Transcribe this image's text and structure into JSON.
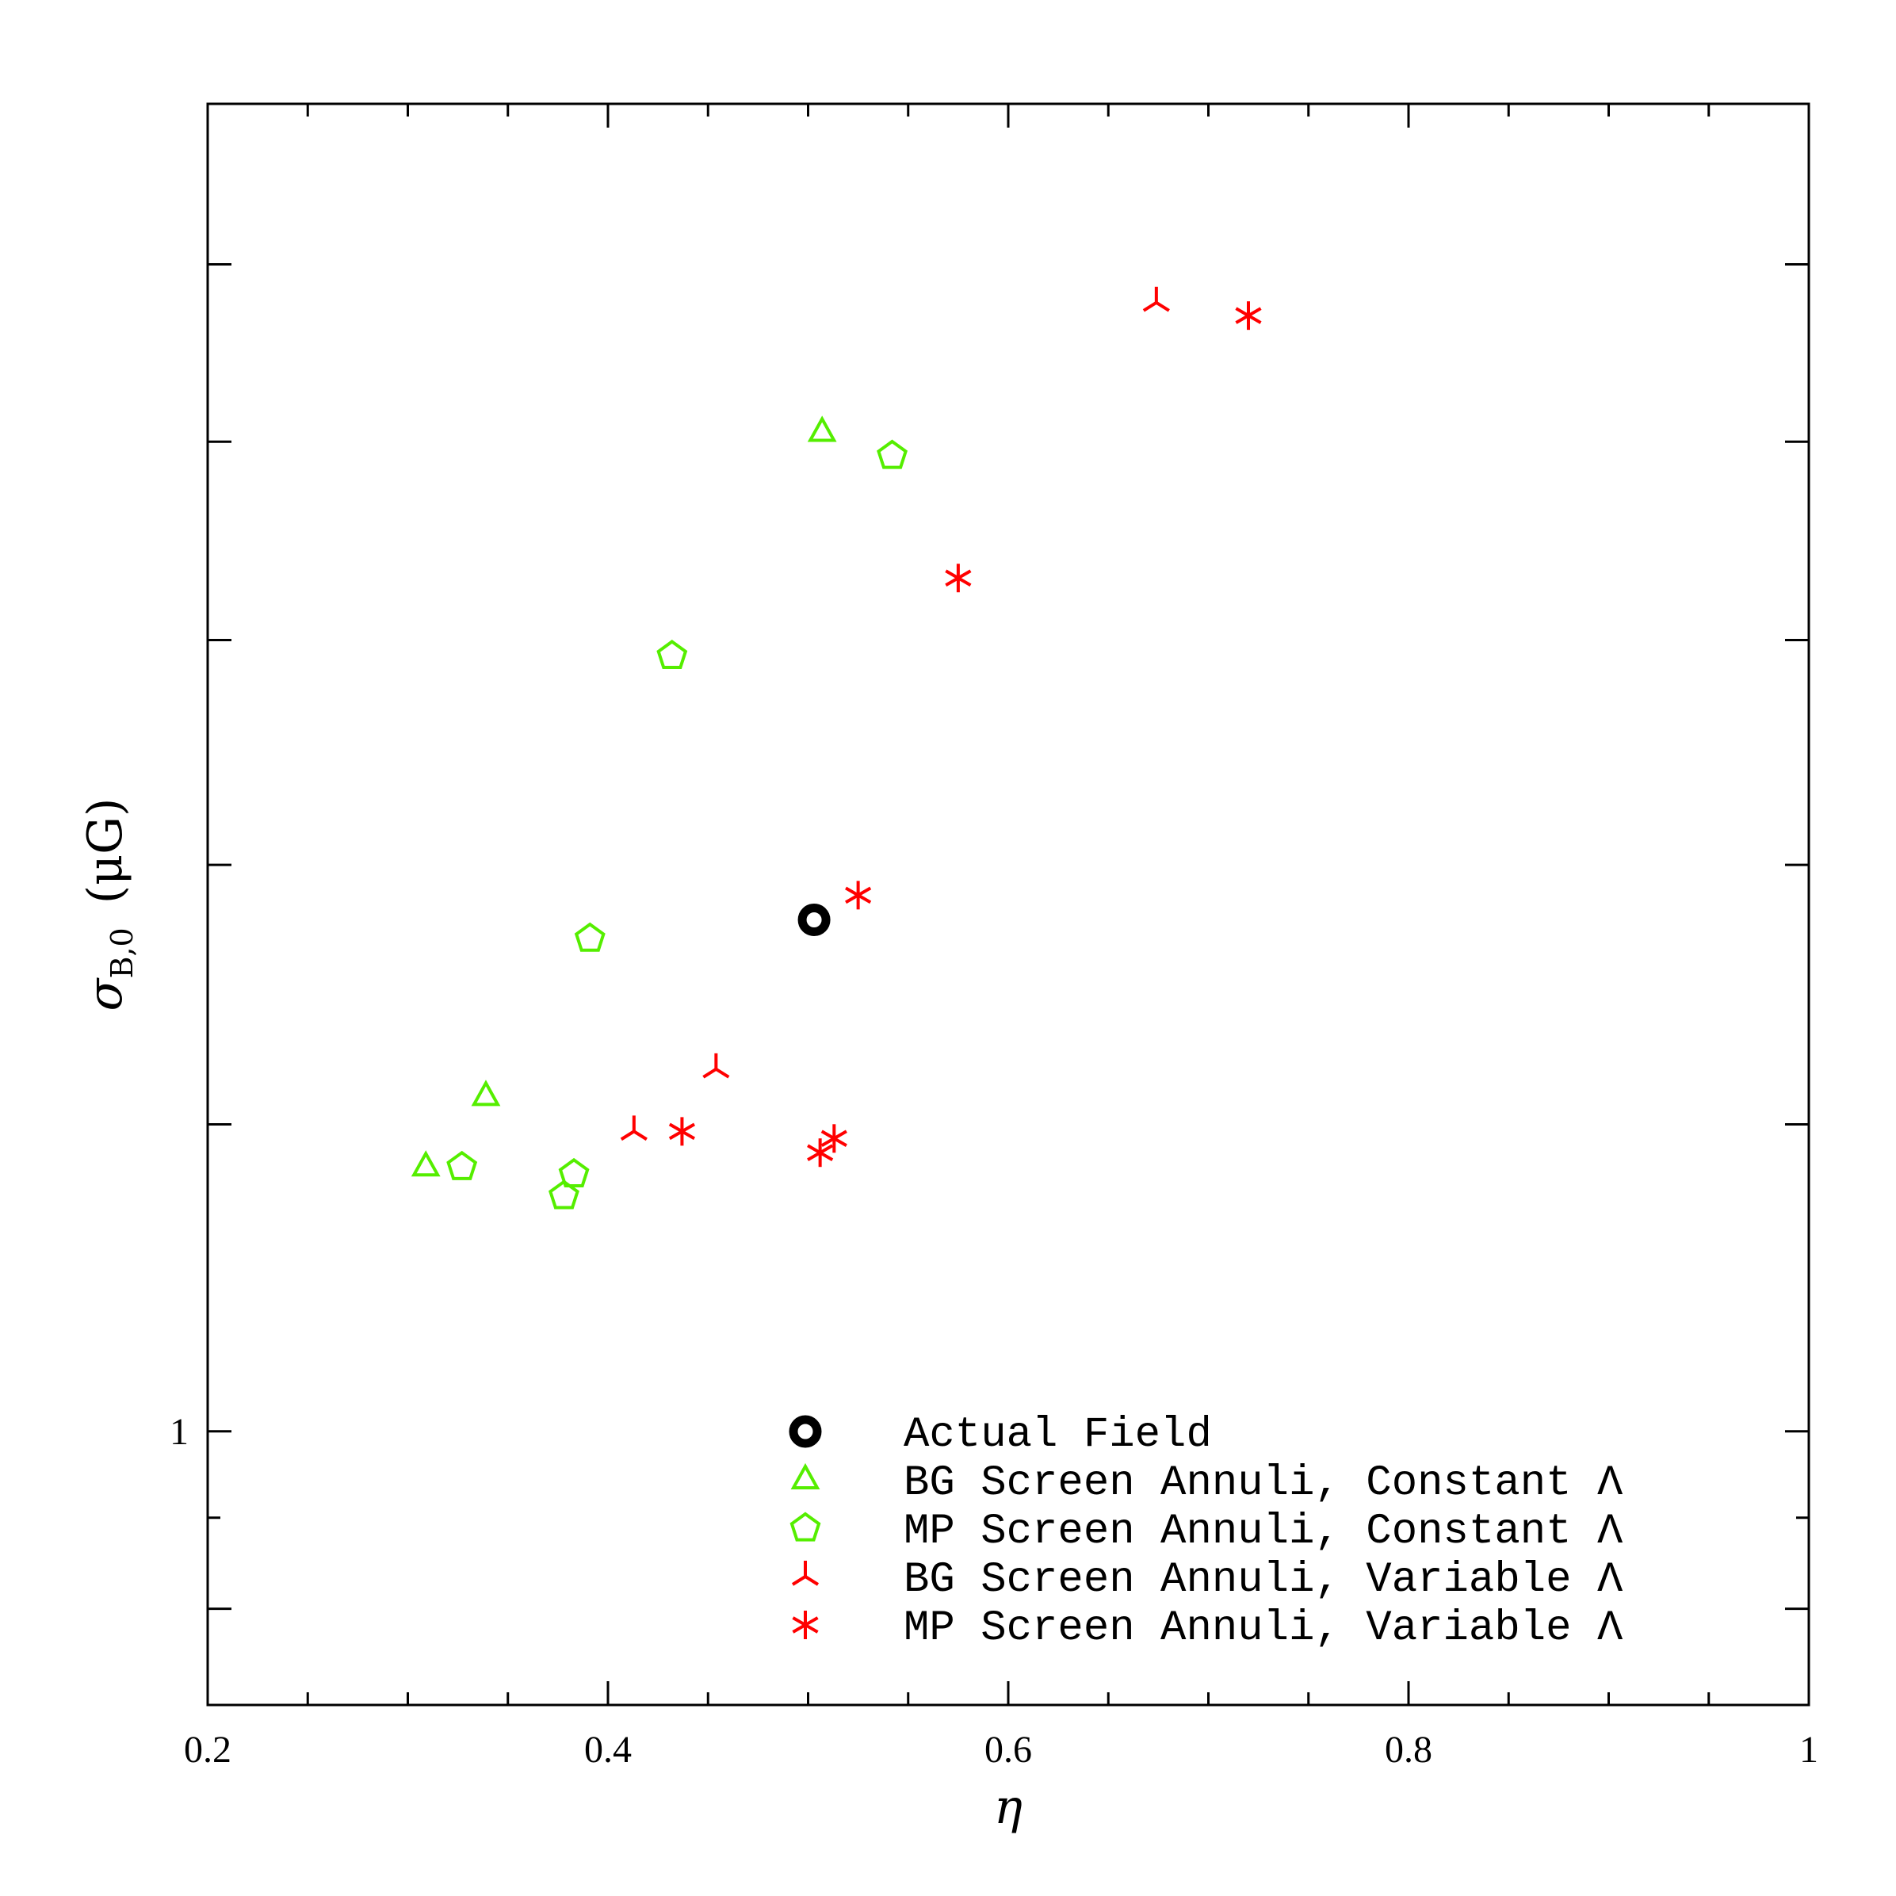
{
  "chart_data": {
    "type": "scatter",
    "xlabel": "η",
    "ylabel_symbol": "σ",
    "ylabel_subscript": "B,0",
    "ylabel_unit": "(μG)",
    "xlim": [
      0.2,
      1.0
    ],
    "ylim": [
      0.85,
      2.2
    ],
    "y_scale": "log",
    "x_ticks": [
      {
        "value": 0.2,
        "label": "0.2"
      },
      {
        "value": 0.4,
        "label": "0.4"
      },
      {
        "value": 0.6,
        "label": "0.6"
      },
      {
        "value": 0.8,
        "label": "0.8"
      },
      {
        "value": 1.0,
        "label": "1"
      }
    ],
    "y_ticks": [
      {
        "value": 1.0,
        "label": "1"
      }
    ],
    "legend_position": "bottom-right",
    "series": [
      {
        "name": "Actual Field",
        "marker": "circle",
        "color": "#000000",
        "points": [
          {
            "x": 0.503,
            "y": 1.355
          }
        ]
      },
      {
        "name": "BG Screen Annuli, Constant Λ",
        "marker": "triangle",
        "color": "#55ee00",
        "points": [
          {
            "x": 0.507,
            "y": 1.81
          },
          {
            "x": 0.339,
            "y": 1.22
          },
          {
            "x": 0.309,
            "y": 1.17
          }
        ]
      },
      {
        "name": "MP Screen Annuli, Constant Λ",
        "marker": "pentagon",
        "color": "#55ee00",
        "points": [
          {
            "x": 0.542,
            "y": 1.785
          },
          {
            "x": 0.432,
            "y": 1.585
          },
          {
            "x": 0.391,
            "y": 1.34
          },
          {
            "x": 0.327,
            "y": 1.17
          },
          {
            "x": 0.383,
            "y": 1.165
          },
          {
            "x": 0.378,
            "y": 1.15
          }
        ]
      },
      {
        "name": "BG Screen Annuli, Variable Λ",
        "marker": "tripod",
        "color": "#ff0000",
        "points": [
          {
            "x": 0.674,
            "y": 1.955
          },
          {
            "x": 0.454,
            "y": 1.24
          },
          {
            "x": 0.413,
            "y": 1.195
          }
        ]
      },
      {
        "name": "MP Screen Annuli, Variable Λ",
        "marker": "asterisk",
        "color": "#ff0000",
        "points": [
          {
            "x": 0.72,
            "y": 1.94
          },
          {
            "x": 0.575,
            "y": 1.66
          },
          {
            "x": 0.525,
            "y": 1.375
          },
          {
            "x": 0.437,
            "y": 1.195
          },
          {
            "x": 0.513,
            "y": 1.19
          },
          {
            "x": 0.506,
            "y": 1.18
          }
        ]
      }
    ]
  }
}
